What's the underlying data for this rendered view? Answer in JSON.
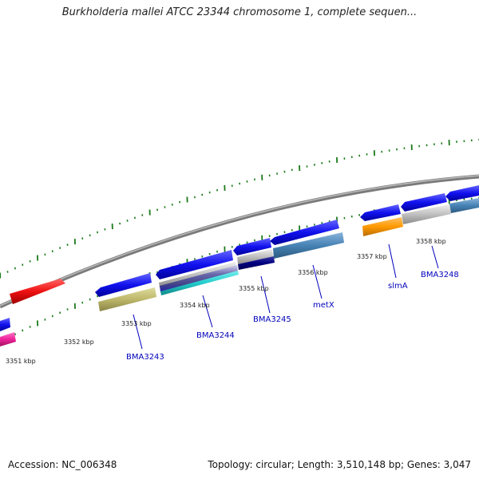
{
  "title": "Burkholderia mallei ATCC 23344 chromosome 1, complete sequen...",
  "footer": {
    "accession": "Accession: NC_006348",
    "summary": "Topology: circular; Length: 3,510,148 bp; Genes: 3,047"
  },
  "kbp_labels": [
    "3351 kbp",
    "3352 kbp",
    "3353 kbp",
    "3354 kbp",
    "3355 kbp",
    "3356 kbp",
    "3357 kbp",
    "3358 kbp"
  ],
  "gene_labels": [
    "BMA3243",
    "BMA3244",
    "BMA3245",
    "metX",
    "slmA",
    "BMA3248"
  ],
  "colors": {
    "backbone": "#888888",
    "tick_green": "#1a7a1a",
    "blue_gene": "#1111ee",
    "red_gene": "#ee1111",
    "pink_gene": "#ee2299",
    "khaki": "#bdb76b",
    "steelblue": "#4682b4",
    "orange": "#ff9900",
    "silver": "#c0c0c0",
    "navy": "#000080",
    "cyan": "#22cccc",
    "label_blue": "#0000bb"
  }
}
